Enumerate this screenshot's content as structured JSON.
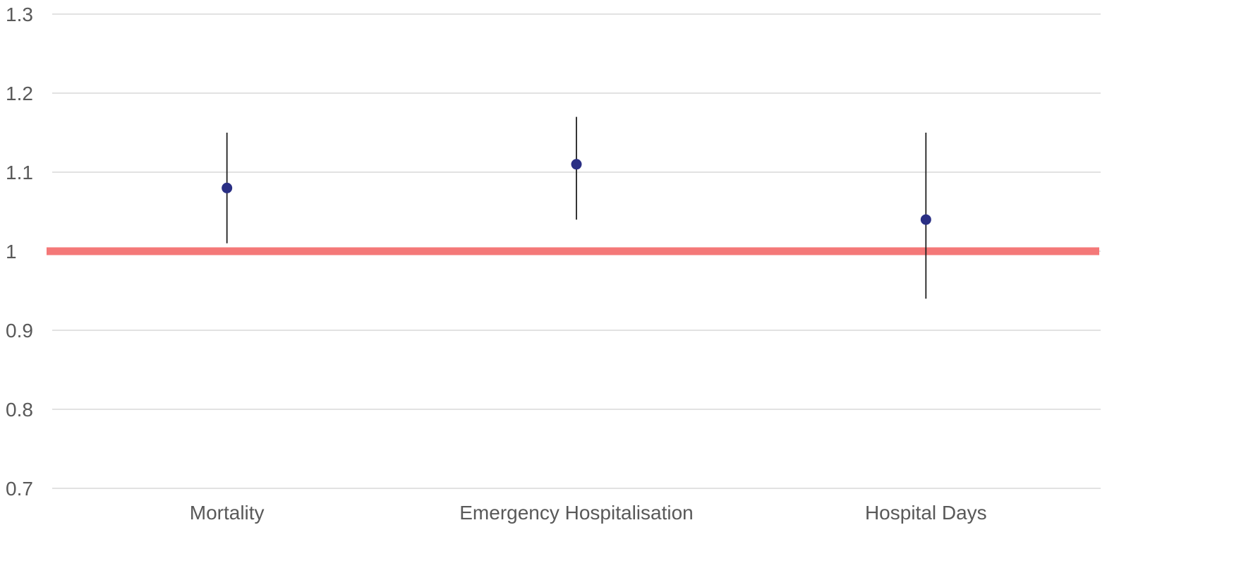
{
  "chart_data": {
    "type": "scatter",
    "title": "",
    "xlabel": "",
    "ylabel": "",
    "categories": [
      "Mortality",
      "Emergency Hospitalisation",
      "Hospital Days"
    ],
    "series": [
      {
        "values": [
          1.08,
          1.11,
          1.04
        ],
        "lower": [
          1.01,
          1.04,
          0.94
        ],
        "upper": [
          1.15,
          1.17,
          1.15
        ]
      }
    ],
    "reference_line": 1,
    "ylim": [
      0.7,
      1.3
    ],
    "yticks": [
      0.7,
      0.8,
      0.9,
      1,
      1.1,
      1.2,
      1.3
    ],
    "ytick_labels": [
      "0.7",
      "0.8",
      "0.9",
      "1",
      "1.1",
      "1.2",
      "1.3"
    ],
    "grid": true,
    "colors": {
      "point": "#2a2f84",
      "error_bar": "#1f1f1f",
      "reference_line": "#f47878",
      "grid": "#d9d9d9",
      "text": "#595959"
    }
  }
}
